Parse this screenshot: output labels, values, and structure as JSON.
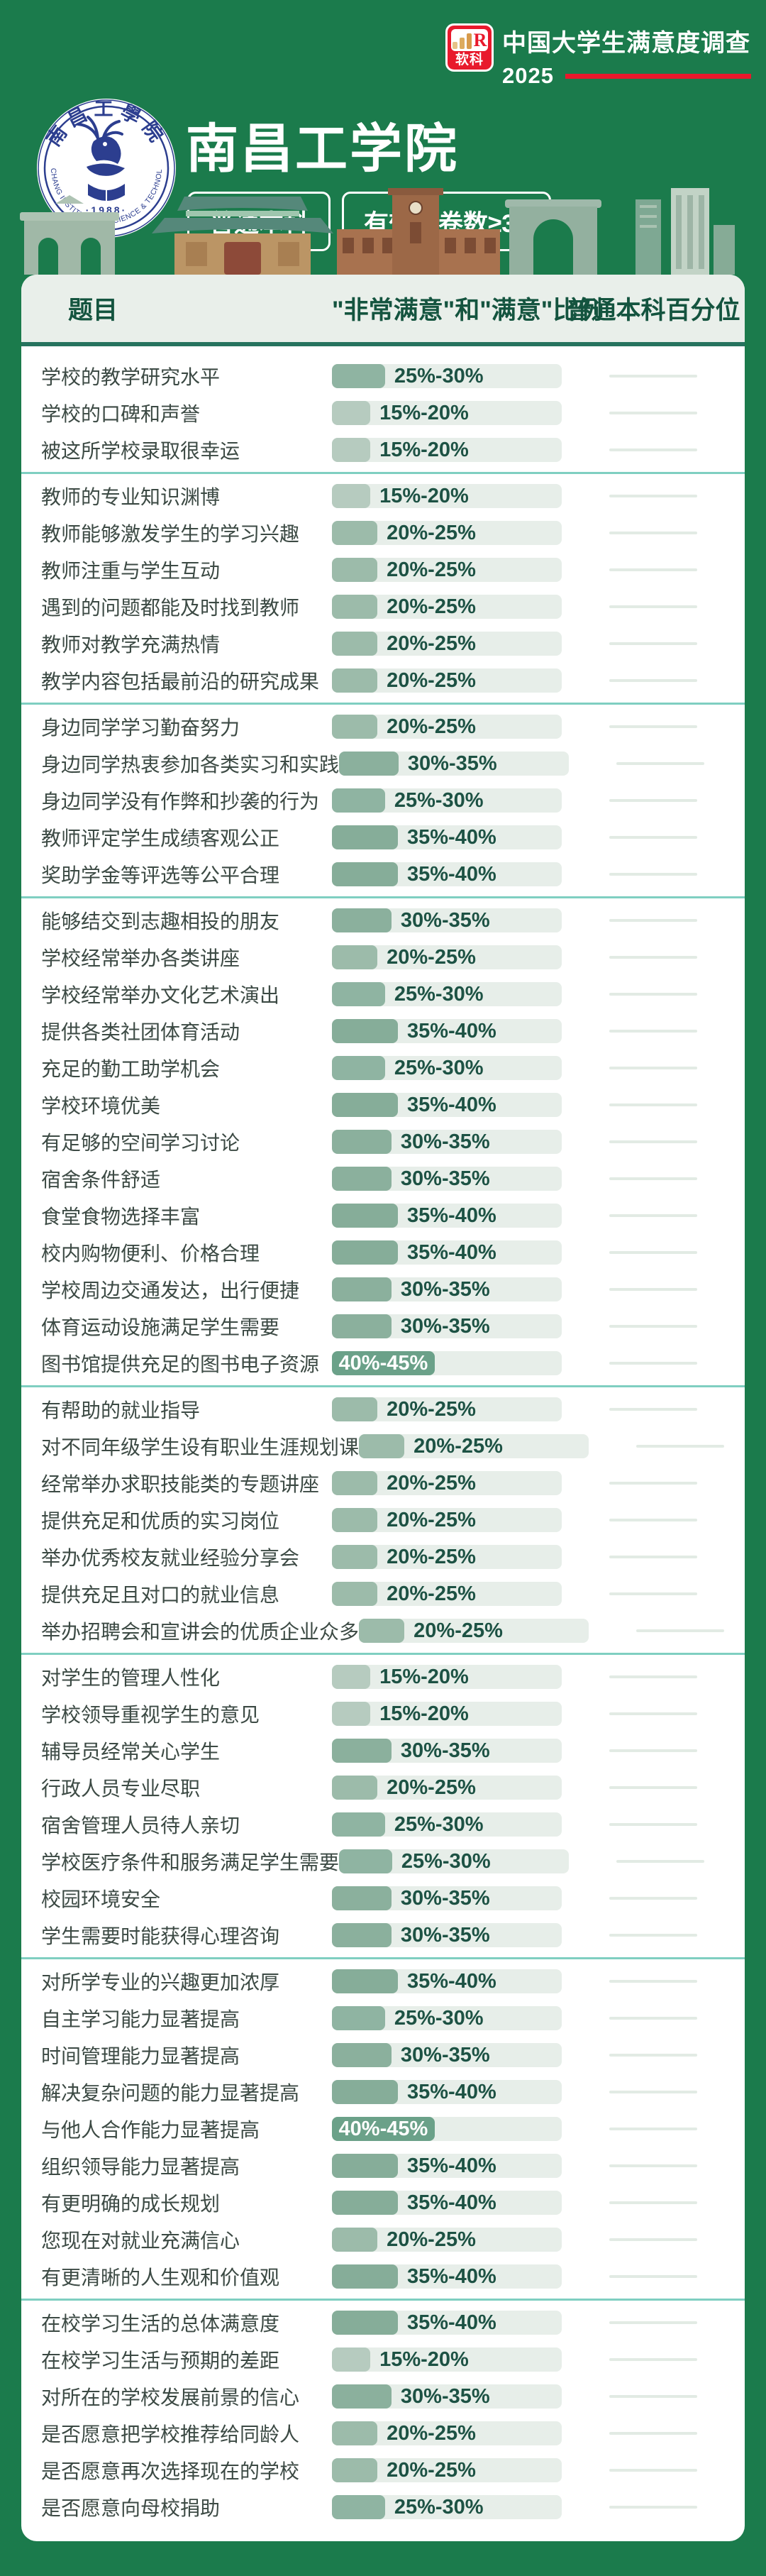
{
  "page": {
    "background": "#1b7b4c"
  },
  "brand": {
    "logo_text": "软科",
    "logo_color": "#e8192c",
    "title": "中国大学生满意度调查",
    "year": "2025"
  },
  "hero": {
    "university": "南昌工学院",
    "badges": [
      "普通本科",
      "有效问卷数≥30"
    ],
    "seal": {
      "top_text": "南昌工學院",
      "arc_text": "NANCHANG INSTITUTE OF SCIENCE & TECHNOLOGY",
      "year_text": "·1988·"
    }
  },
  "table": {
    "headers": [
      "题目",
      "\"非常满意\"和\"满意\"比例",
      "普通本科百分位"
    ],
    "colors": {
      "header_text": "#14543f",
      "header_bg": "#e9efea",
      "header_border": "#26735e",
      "separator": "#7fcfc1",
      "question_text": "#3c4a44",
      "label_text": "#1d5244",
      "label_text_inside": "#ffffff",
      "track": "#e7eee9",
      "percentile_line": "#e2ebe4",
      "fill_by_low": {
        "15": "#b6cbbf",
        "20": "#9cbbaa",
        "25": "#8fb4a2",
        "30": "#8bb09d",
        "35": "#86ad99",
        "40": "#6ba189"
      }
    },
    "fill_pct_by_low": {
      "15": 16.7,
      "20": 19.8,
      "25": 23.1,
      "30": 25.9,
      "35": 28.7,
      "40": 44.7
    },
    "groups": [
      {
        "rows": [
          {
            "q": "学校的教学研究水平",
            "range": "25%-30%",
            "low": 25
          },
          {
            "q": "学校的口碑和声誉",
            "range": "15%-20%",
            "low": 15
          },
          {
            "q": "被这所学校录取很幸运",
            "range": "15%-20%",
            "low": 15
          }
        ]
      },
      {
        "rows": [
          {
            "q": "教师的专业知识渊博",
            "range": "15%-20%",
            "low": 15
          },
          {
            "q": "教师能够激发学生的学习兴趣",
            "range": "20%-25%",
            "low": 20
          },
          {
            "q": "教师注重与学生互动",
            "range": "20%-25%",
            "low": 20
          },
          {
            "q": "遇到的问题都能及时找到教师",
            "range": "20%-25%",
            "low": 20
          },
          {
            "q": "教师对教学充满热情",
            "range": "20%-25%",
            "low": 20
          },
          {
            "q": "教学内容包括最前沿的研究成果",
            "range": "20%-25%",
            "low": 20
          }
        ]
      },
      {
        "rows": [
          {
            "q": "身边同学学习勤奋努力",
            "range": "20%-25%",
            "low": 20
          },
          {
            "q": "身边同学热衷参加各类实习和实践",
            "range": "30%-35%",
            "low": 30
          },
          {
            "q": "身边同学没有作弊和抄袭的行为",
            "range": "25%-30%",
            "low": 25
          },
          {
            "q": "教师评定学生成绩客观公正",
            "range": "35%-40%",
            "low": 35
          },
          {
            "q": "奖助学金等评选等公平合理",
            "range": "35%-40%",
            "low": 35
          }
        ]
      },
      {
        "rows": [
          {
            "q": "能够结交到志趣相投的朋友",
            "range": "30%-35%",
            "low": 30
          },
          {
            "q": "学校经常举办各类讲座",
            "range": "20%-25%",
            "low": 20
          },
          {
            "q": "学校经常举办文化艺术演出",
            "range": "25%-30%",
            "low": 25
          },
          {
            "q": "提供各类社团体育活动",
            "range": "35%-40%",
            "low": 35
          },
          {
            "q": "充足的勤工助学机会",
            "range": "25%-30%",
            "low": 25
          },
          {
            "q": "学校环境优美",
            "range": "35%-40%",
            "low": 35
          },
          {
            "q": "有足够的空间学习讨论",
            "range": "30%-35%",
            "low": 30
          },
          {
            "q": "宿舍条件舒适",
            "range": "30%-35%",
            "low": 30
          },
          {
            "q": "食堂食物选择丰富",
            "range": "35%-40%",
            "low": 35
          },
          {
            "q": "校内购物便利、价格合理",
            "range": "35%-40%",
            "low": 35
          },
          {
            "q": "学校周边交通发达，出行便捷",
            "range": "30%-35%",
            "low": 30
          },
          {
            "q": "体育运动设施满足学生需要",
            "range": "30%-35%",
            "low": 30
          },
          {
            "q": "图书馆提供充足的图书电子资源",
            "range": "40%-45%",
            "low": 40
          }
        ]
      },
      {
        "rows": [
          {
            "q": "有帮助的就业指导",
            "range": "20%-25%",
            "low": 20
          },
          {
            "q": "对不同年级学生设有职业生涯规划课",
            "range": "20%-25%",
            "low": 20
          },
          {
            "q": "经常举办求职技能类的专题讲座",
            "range": "20%-25%",
            "low": 20
          },
          {
            "q": "提供充足和优质的实习岗位",
            "range": "20%-25%",
            "low": 20
          },
          {
            "q": "举办优秀校友就业经验分享会",
            "range": "20%-25%",
            "low": 20
          },
          {
            "q": "提供充足且对口的就业信息",
            "range": "20%-25%",
            "low": 20
          },
          {
            "q": "举办招聘会和宣讲会的优质企业众多",
            "range": "20%-25%",
            "low": 20
          }
        ]
      },
      {
        "rows": [
          {
            "q": "对学生的管理人性化",
            "range": "15%-20%",
            "low": 15
          },
          {
            "q": "学校领导重视学生的意见",
            "range": "15%-20%",
            "low": 15
          },
          {
            "q": "辅导员经常关心学生",
            "range": "30%-35%",
            "low": 30
          },
          {
            "q": "行政人员专业尽职",
            "range": "20%-25%",
            "low": 20
          },
          {
            "q": "宿舍管理人员待人亲切",
            "range": "25%-30%",
            "low": 25
          },
          {
            "q": "学校医疗条件和服务满足学生需要",
            "range": "25%-30%",
            "low": 25
          },
          {
            "q": "校园环境安全",
            "range": "30%-35%",
            "low": 30
          },
          {
            "q": "学生需要时能获得心理咨询",
            "range": "30%-35%",
            "low": 30
          }
        ]
      },
      {
        "rows": [
          {
            "q": "对所学专业的兴趣更加浓厚",
            "range": "35%-40%",
            "low": 35
          },
          {
            "q": "自主学习能力显著提高",
            "range": "25%-30%",
            "low": 25
          },
          {
            "q": "时间管理能力显著提高",
            "range": "30%-35%",
            "low": 30
          },
          {
            "q": "解决复杂问题的能力显著提高",
            "range": "35%-40%",
            "low": 35
          },
          {
            "q": "与他人合作能力显著提高",
            "range": "40%-45%",
            "low": 40
          },
          {
            "q": "组织领导能力显著提高",
            "range": "35%-40%",
            "low": 35
          },
          {
            "q": "有更明确的成长规划",
            "range": "35%-40%",
            "low": 35
          },
          {
            "q": "您现在对就业充满信心",
            "range": "20%-25%",
            "low": 20
          },
          {
            "q": "有更清晰的人生观和价值观",
            "range": "35%-40%",
            "low": 35
          }
        ]
      },
      {
        "rows": [
          {
            "q": "在校学习生活的总体满意度",
            "range": "35%-40%",
            "low": 35
          },
          {
            "q": "在校学习生活与预期的差距",
            "range": "15%-20%",
            "low": 15
          },
          {
            "q": "对所在的学校发展前景的信心",
            "range": "30%-35%",
            "low": 30
          },
          {
            "q": "是否愿意把学校推荐给同龄人",
            "range": "20%-25%",
            "low": 20
          },
          {
            "q": "是否愿意再次选择现在的学校",
            "range": "20%-25%",
            "low": 20
          },
          {
            "q": "是否愿意向母校捐助",
            "range": "25%-30%",
            "low": 25
          }
        ]
      }
    ]
  },
  "chart_data": {
    "type": "table",
    "title": "南昌工学院 — 中国大学生满意度调查 2025（普通本科，有效问卷数≥30）",
    "columns": [
      "题目",
      "\"非常满意\"和\"满意\"比例",
      "普通本科百分位"
    ],
    "note": "普通本科百分位 column shows blank placeholder lines only",
    "rows": [
      [
        "学校的教学研究水平",
        "25%-30%"
      ],
      [
        "学校的口碑和声誉",
        "15%-20%"
      ],
      [
        "被这所学校录取很幸运",
        "15%-20%"
      ],
      [
        "教师的专业知识渊博",
        "15%-20%"
      ],
      [
        "教师能够激发学生的学习兴趣",
        "20%-25%"
      ],
      [
        "教师注重与学生互动",
        "20%-25%"
      ],
      [
        "遇到的问题都能及时找到教师",
        "20%-25%"
      ],
      [
        "教师对教学充满热情",
        "20%-25%"
      ],
      [
        "教学内容包括最前沿的研究成果",
        "20%-25%"
      ],
      [
        "身边同学学习勤奋努力",
        "20%-25%"
      ],
      [
        "身边同学热衷参加各类实习和实践",
        "30%-35%"
      ],
      [
        "身边同学没有作弊和抄袭的行为",
        "25%-30%"
      ],
      [
        "教师评定学生成绩客观公正",
        "35%-40%"
      ],
      [
        "奖助学金等评选等公平合理",
        "35%-40%"
      ],
      [
        "能够结交到志趣相投的朋友",
        "30%-35%"
      ],
      [
        "学校经常举办各类讲座",
        "20%-25%"
      ],
      [
        "学校经常举办文化艺术演出",
        "25%-30%"
      ],
      [
        "提供各类社团体育活动",
        "35%-40%"
      ],
      [
        "充足的勤工助学机会",
        "25%-30%"
      ],
      [
        "学校环境优美",
        "35%-40%"
      ],
      [
        "有足够的空间学习讨论",
        "30%-35%"
      ],
      [
        "宿舍条件舒适",
        "30%-35%"
      ],
      [
        "食堂食物选择丰富",
        "35%-40%"
      ],
      [
        "校内购物便利、价格合理",
        "35%-40%"
      ],
      [
        "学校周边交通发达，出行便捷",
        "30%-35%"
      ],
      [
        "体育运动设施满足学生需要",
        "30%-35%"
      ],
      [
        "图书馆提供充足的图书电子资源",
        "40%-45%"
      ],
      [
        "有帮助的就业指导",
        "20%-25%"
      ],
      [
        "对不同年级学生设有职业生涯规划课",
        "20%-25%"
      ],
      [
        "经常举办求职技能类的专题讲座",
        "20%-25%"
      ],
      [
        "提供充足和优质的实习岗位",
        "20%-25%"
      ],
      [
        "举办优秀校友就业经验分享会",
        "20%-25%"
      ],
      [
        "提供充足且对口的就业信息",
        "20%-25%"
      ],
      [
        "举办招聘会和宣讲会的优质企业众多",
        "20%-25%"
      ],
      [
        "对学生的管理人性化",
        "15%-20%"
      ],
      [
        "学校领导重视学生的意见",
        "15%-20%"
      ],
      [
        "辅导员经常关心学生",
        "30%-35%"
      ],
      [
        "行政人员专业尽职",
        "20%-25%"
      ],
      [
        "宿舍管理人员待人亲切",
        "25%-30%"
      ],
      [
        "学校医疗条件和服务满足学生需要",
        "25%-30%"
      ],
      [
        "校园环境安全",
        "30%-35%"
      ],
      [
        "学生需要时能获得心理咨询",
        "30%-35%"
      ],
      [
        "对所学专业的兴趣更加浓厚",
        "35%-40%"
      ],
      [
        "自主学习能力显著提高",
        "25%-30%"
      ],
      [
        "时间管理能力显著提高",
        "30%-35%"
      ],
      [
        "解决复杂问题的能力显著提高",
        "35%-40%"
      ],
      [
        "与他人合作能力显著提高",
        "40%-45%"
      ],
      [
        "组织领导能力显著提高",
        "35%-40%"
      ],
      [
        "有更明确的成长规划",
        "35%-40%"
      ],
      [
        "您现在对就业充满信心",
        "20%-25%"
      ],
      [
        "有更清晰的人生观和价值观",
        "35%-40%"
      ],
      [
        "在校学习生活的总体满意度",
        "35%-40%"
      ],
      [
        "在校学习生活与预期的差距",
        "15%-20%"
      ],
      [
        "对所在的学校发展前景的信心",
        "30%-35%"
      ],
      [
        "是否愿意把学校推荐给同龄人",
        "20%-25%"
      ],
      [
        "是否愿意再次选择现在的学校",
        "20%-25%"
      ],
      [
        "是否愿意向母校捐助",
        "25%-30%"
      ]
    ]
  }
}
